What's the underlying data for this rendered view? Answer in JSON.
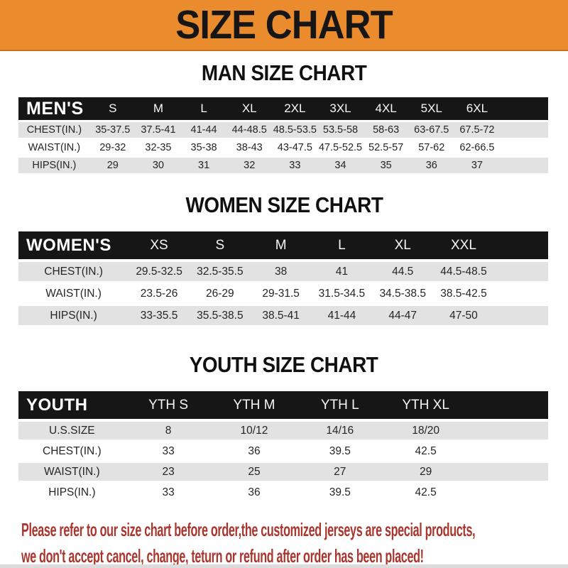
{
  "banner": {
    "title": "SIZE CHART"
  },
  "sections": [
    {
      "heading": "MAN SIZE CHART",
      "table": {
        "label": "MEN'S",
        "columns": [
          "S",
          "M",
          "L",
          "XL",
          "2XL",
          "3XL",
          "4XL",
          "5XL",
          "6XL"
        ],
        "rows": [
          {
            "label": "CHEST(IN.)",
            "values": [
              "35-37.5",
              "37.5-41",
              "41-44",
              "44-48.5",
              "48.5-53.5",
              "53.5-58",
              "58-63",
              "63-67.5",
              "67.5-72"
            ]
          },
          {
            "label": "WAIST(IN.)",
            "values": [
              "29-32",
              "32-35",
              "35-38",
              "38-43",
              "43-47.5",
              "47.5-52.5",
              "52.5-57",
              "57-62",
              "62-66.5"
            ]
          },
          {
            "label": "HIPS(IN.)",
            "values": [
              "29",
              "30",
              "31",
              "32",
              "33",
              "34",
              "35",
              "36",
              "37"
            ]
          }
        ]
      }
    },
    {
      "heading": "WOMEN SIZE CHART",
      "table": {
        "label": "WOMEN'S",
        "columns": [
          "XS",
          "S",
          "M",
          "L",
          "XL",
          "XXL"
        ],
        "rows": [
          {
            "label": "CHEST(IN.)",
            "values": [
              "29.5-32.5",
              "32.5-35.5",
              "38",
              "41",
              "44.5",
              "44.5-48.5"
            ]
          },
          {
            "label": "WAIST(IN.)",
            "values": [
              "23.5-26",
              "26-29",
              "29-31.5",
              "31.5-34.5",
              "34.5-38.5",
              "38.5-42.5"
            ]
          },
          {
            "label": "HIPS(IN.)",
            "values": [
              "33-35.5",
              "35.5-38.5",
              "38.5-41",
              "41-44",
              "44-47",
              "47-50"
            ]
          }
        ]
      }
    },
    {
      "heading": "YOUTH SIZE CHART",
      "table": {
        "label": "YOUTH",
        "columns": [
          "YTH S",
          "YTH M",
          "YTH L",
          "YTH XL"
        ],
        "rows": [
          {
            "label": "U.S.SIZE",
            "values": [
              "8",
              "10/12",
              "14/16",
              "18/20"
            ]
          },
          {
            "label": "CHEST(IN.)",
            "values": [
              "33",
              "36",
              "39.5",
              "42.5"
            ]
          },
          {
            "label": "WAIST(IN.)",
            "values": [
              "23",
              "25",
              "27",
              "29"
            ]
          },
          {
            "label": "HIPS(IN.)",
            "values": [
              "33",
              "36",
              "39.5",
              "42.5"
            ]
          }
        ]
      }
    }
  ],
  "footer": {
    "line1": "Please refer to our size chart before order,the customized jerseys are special products,",
    "line2": "we don't accept cancel, change, teturn or refund after order has been placed!"
  },
  "colors": {
    "banner_bg": "#ea8c2d",
    "banner_text": "#161616",
    "header_band_bg": "#161616",
    "header_band_text": "#f7f7f7",
    "row_gray": "#e2e2e2",
    "row_white": "#ffffff",
    "footer_text": "#a9362e"
  }
}
